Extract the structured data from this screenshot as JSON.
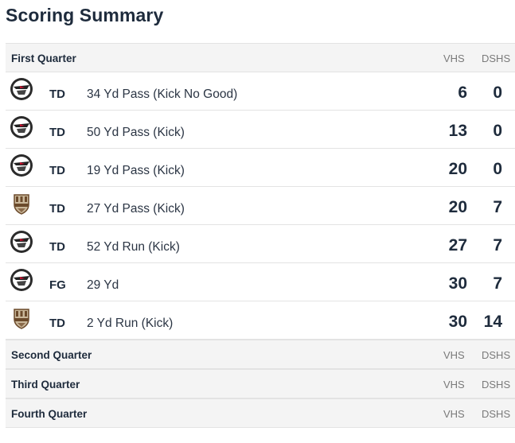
{
  "title": "Scoring Summary",
  "columns": {
    "home": "VHS",
    "away": "DSHS"
  },
  "quarters": [
    {
      "label": "First Quarter",
      "plays": [
        {
          "team_logo": "eagle-helmet-icon",
          "type": "TD",
          "description": "34 Yd Pass (Kick No Good)",
          "vhs": "6",
          "dshs": "0"
        },
        {
          "team_logo": "eagle-helmet-icon",
          "type": "TD",
          "description": "50 Yd Pass (Kick)",
          "vhs": "13",
          "dshs": "0"
        },
        {
          "team_logo": "eagle-helmet-icon",
          "type": "TD",
          "description": "19 Yd Pass (Kick)",
          "vhs": "20",
          "dshs": "0"
        },
        {
          "team_logo": "shield-crest-icon",
          "type": "TD",
          "description": "27 Yd Pass (Kick)",
          "vhs": "20",
          "dshs": "7"
        },
        {
          "team_logo": "eagle-helmet-icon",
          "type": "TD",
          "description": "52 Yd Run (Kick)",
          "vhs": "27",
          "dshs": "7"
        },
        {
          "team_logo": "eagle-helmet-icon",
          "type": "FG",
          "description": "29 Yd",
          "vhs": "30",
          "dshs": "7"
        },
        {
          "team_logo": "shield-crest-icon",
          "type": "TD",
          "description": "2 Yd Run (Kick)",
          "vhs": "30",
          "dshs": "14"
        }
      ]
    },
    {
      "label": "Second Quarter",
      "plays": []
    },
    {
      "label": "Third Quarter",
      "plays": []
    },
    {
      "label": "Fourth Quarter",
      "plays": []
    }
  ]
}
